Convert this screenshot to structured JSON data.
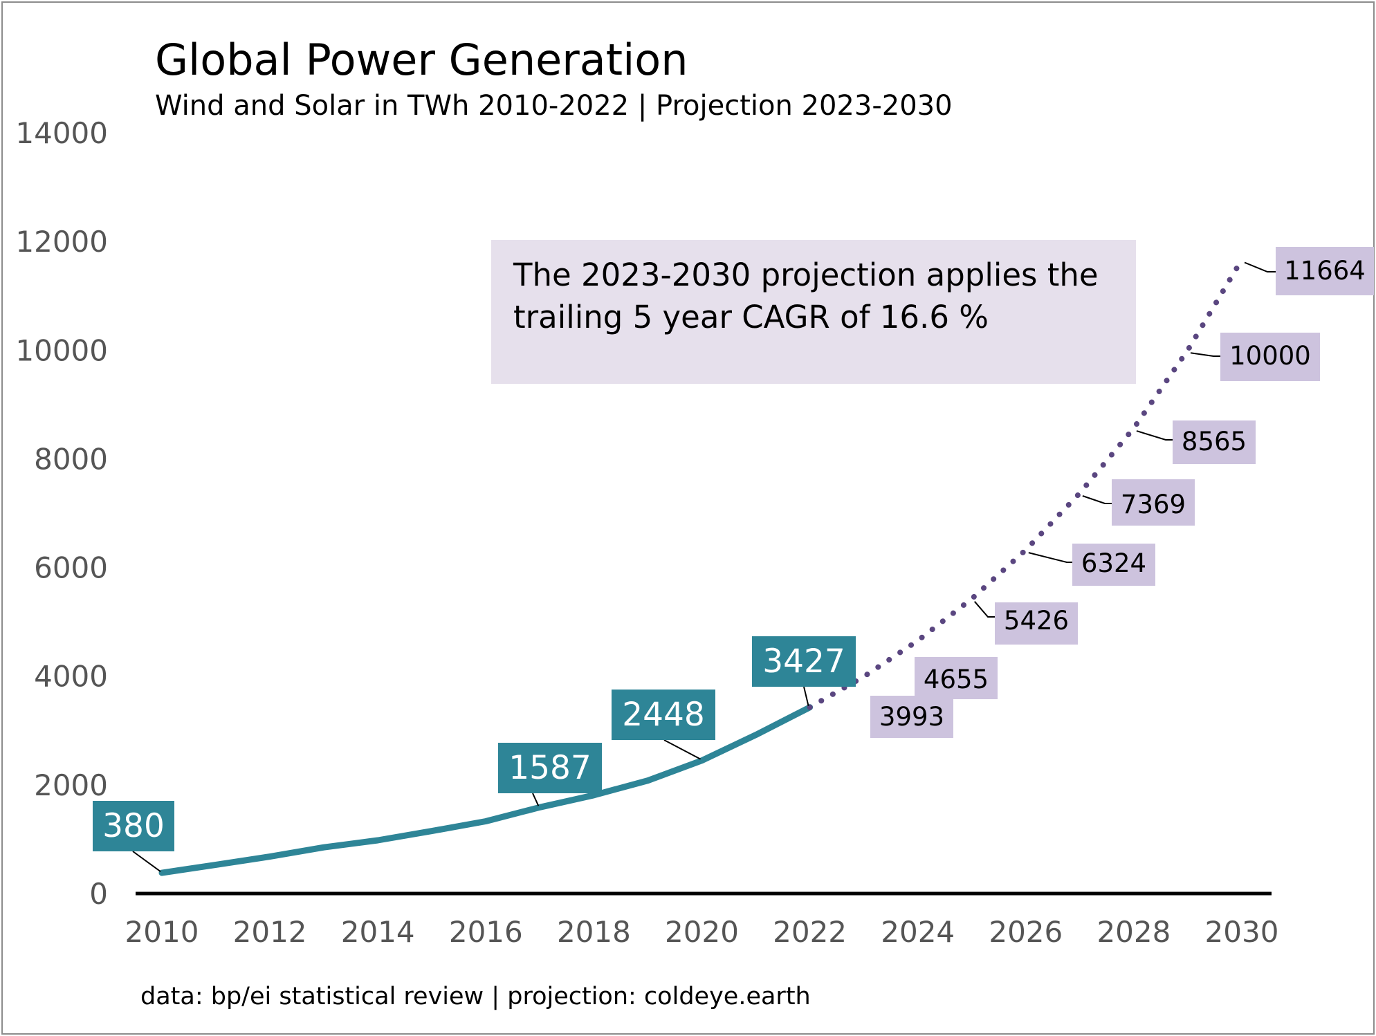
{
  "chart_data": {
    "type": "line",
    "title": "Global Power Generation",
    "subtitle": "Wind and Solar in TWh 2010-2022 | Projection 2023-2030",
    "source": "data: bp/ei statistical review | projection: coldeye.earth",
    "annotation": [
      "The 2023-2030 projection applies the",
      "trailing 5 year CAGR of 16.6 %"
    ],
    "ylim": [
      0,
      14000
    ],
    "xlim": [
      2010,
      2030
    ],
    "y_ticks": [
      "0",
      "2000",
      "4000",
      "6000",
      "8000",
      "10000",
      "12000",
      "14000"
    ],
    "x_ticks": [
      "2010",
      "2012",
      "2014",
      "2016",
      "2018",
      "2020",
      "2022",
      "2024",
      "2026",
      "2028",
      "2030"
    ],
    "grid": false,
    "colors": {
      "actual": "#2e8597",
      "projection": "#5a4680",
      "projection_label_bg": "#cdc3de",
      "annotation_bg": "#e6e0ec",
      "axis": "#000000"
    },
    "series": [
      {
        "style": "solid",
        "x": [
          2010,
          2011,
          2012,
          2013,
          2014,
          2015,
          2016,
          2017,
          2018,
          2019,
          2020,
          2021,
          2022
        ],
        "values": [
          380,
          530,
          680,
          850,
          980,
          1150,
          1330,
          1587,
          1810,
          2080,
          2448,
          2920,
          3427
        ]
      },
      {
        "style": "dotted",
        "x": [
          2022,
          2023,
          2024,
          2025,
          2026,
          2027,
          2028,
          2029,
          2030
        ],
        "values": [
          3427,
          3993,
          4655,
          5426,
          6324,
          7369,
          8565,
          10000,
          11664
        ]
      }
    ],
    "point_labels": [
      {
        "series": 0,
        "x": 2010,
        "text": "380"
      },
      {
        "series": 0,
        "x": 2017,
        "text": "1587"
      },
      {
        "series": 0,
        "x": 2020,
        "text": "2448"
      },
      {
        "series": 0,
        "x": 2022,
        "text": "3427"
      },
      {
        "series": 1,
        "x": 2023,
        "text": "3993"
      },
      {
        "series": 1,
        "x": 2024,
        "text": "4655"
      },
      {
        "series": 1,
        "x": 2025,
        "text": "5426"
      },
      {
        "series": 1,
        "x": 2026,
        "text": "6324"
      },
      {
        "series": 1,
        "x": 2027,
        "text": "7369"
      },
      {
        "series": 1,
        "x": 2028,
        "text": "8565"
      },
      {
        "series": 1,
        "x": 2029,
        "text": "10000"
      },
      {
        "series": 1,
        "x": 2030,
        "text": "11664"
      }
    ]
  }
}
